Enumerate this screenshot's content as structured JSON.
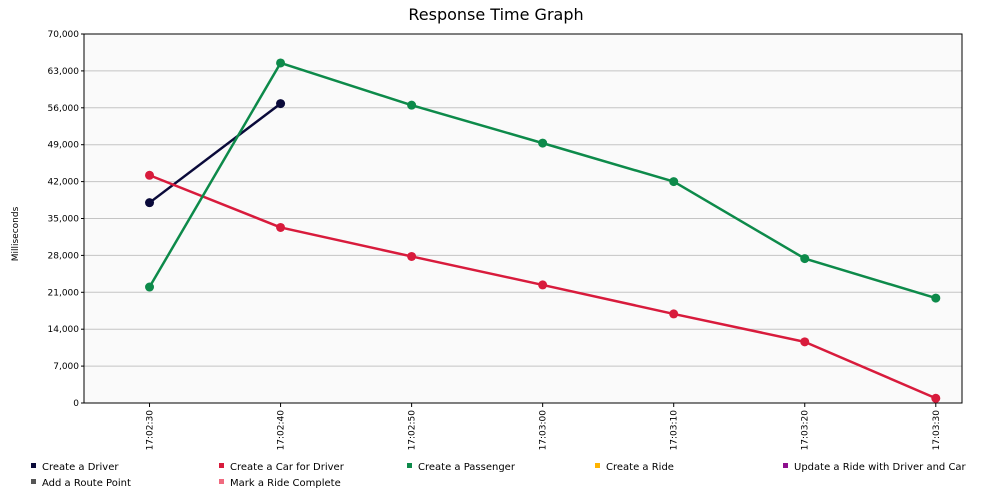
{
  "chart_data": {
    "type": "line",
    "title": "Response Time Graph",
    "xlabel": "",
    "ylabel": "Milliseconds",
    "ylim": [
      0,
      70000
    ],
    "y_ticks": [
      0,
      7000,
      14000,
      21000,
      28000,
      35000,
      42000,
      49000,
      56000,
      63000,
      70000
    ],
    "y_tick_labels": [
      "0",
      "7,000",
      "14,000",
      "21,000",
      "28,000",
      "35,000",
      "42,000",
      "49,000",
      "56,000",
      "63,000",
      "70,000"
    ],
    "x_ticks": [
      "17:02:30",
      "17:02:40",
      "17:02:50",
      "17:03:00",
      "17:03:10",
      "17:03:20",
      "17:03:30"
    ],
    "x_range": [
      "17:02:25",
      "17:03:32"
    ],
    "grid": true,
    "legend_position": "bottom",
    "series": [
      {
        "name": "Create a Driver",
        "color": "#0a0a3a",
        "points": [
          {
            "x": "17:02:30",
            "y": 38000
          },
          {
            "x": "17:02:40",
            "y": 56800
          }
        ]
      },
      {
        "name": "Create a Car for Driver",
        "color": "#d81b3c",
        "points": [
          {
            "x": "17:02:30",
            "y": 43200
          },
          {
            "x": "17:02:40",
            "y": 33300
          },
          {
            "x": "17:02:50",
            "y": 27800
          },
          {
            "x": "17:03:00",
            "y": 22400
          },
          {
            "x": "17:03:10",
            "y": 16900
          },
          {
            "x": "17:03:20",
            "y": 11600
          },
          {
            "x": "17:03:30",
            "y": 900
          }
        ]
      },
      {
        "name": "Create a Passenger",
        "color": "#0d8a4a",
        "points": [
          {
            "x": "17:02:30",
            "y": 22000
          },
          {
            "x": "17:02:40",
            "y": 64500
          },
          {
            "x": "17:02:50",
            "y": 56500
          },
          {
            "x": "17:03:00",
            "y": 49300
          },
          {
            "x": "17:03:10",
            "y": 42000
          },
          {
            "x": "17:03:20",
            "y": 27400
          },
          {
            "x": "17:03:30",
            "y": 19900
          }
        ]
      },
      {
        "name": "Create a Ride",
        "color": "#ffb400",
        "points": []
      },
      {
        "name": "Update a Ride with Driver and Car",
        "color": "#8e0f8e",
        "points": []
      },
      {
        "name": "Add a Route Point",
        "color": "#555555",
        "points": []
      },
      {
        "name": "Mark a Ride Complete",
        "color": "#f06a7f",
        "points": []
      }
    ]
  }
}
